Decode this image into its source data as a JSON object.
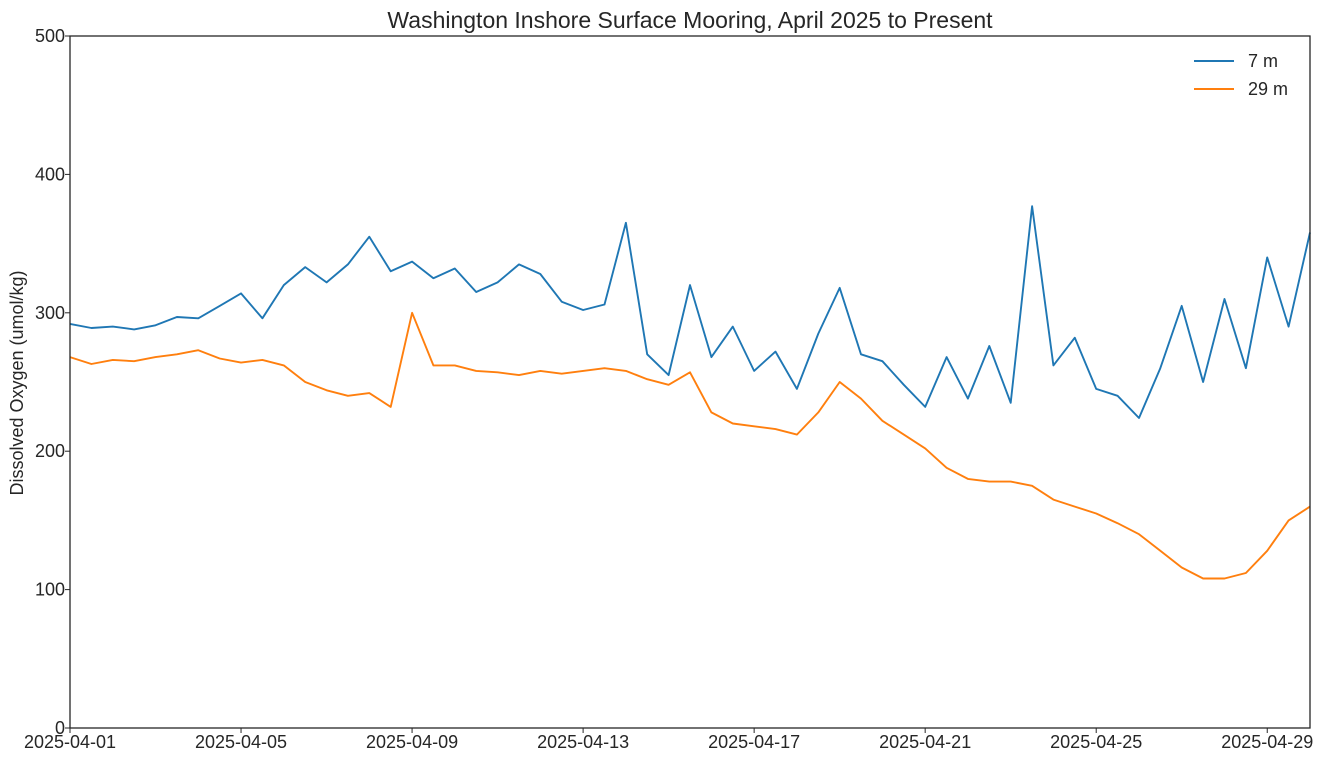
{
  "chart_data": {
    "type": "line",
    "title": "Washington Inshore Surface Mooring, April 2025 to Present",
    "xlabel": "",
    "ylabel": "Dissolved Oxygen (umol/kg)",
    "ylim": [
      0,
      500
    ],
    "xlim": [
      "2025-04-01",
      "2025-04-30"
    ],
    "yticks": [
      0,
      100,
      200,
      300,
      400,
      500
    ],
    "xticks": [
      "2025-04-01",
      "2025-04-05",
      "2025-04-09",
      "2025-04-13",
      "2025-04-17",
      "2025-04-21",
      "2025-04-25",
      "2025-04-29"
    ],
    "grid": false,
    "legend": "top-right",
    "x": [
      "2025-04-01 00:00",
      "2025-04-01 12:00",
      "2025-04-02 00:00",
      "2025-04-02 12:00",
      "2025-04-03 00:00",
      "2025-04-03 12:00",
      "2025-04-04 00:00",
      "2025-04-04 12:00",
      "2025-04-05 00:00",
      "2025-04-05 12:00",
      "2025-04-06 00:00",
      "2025-04-06 12:00",
      "2025-04-07 00:00",
      "2025-04-07 12:00",
      "2025-04-08 00:00",
      "2025-04-08 12:00",
      "2025-04-09 00:00",
      "2025-04-09 12:00",
      "2025-04-10 00:00",
      "2025-04-10 12:00",
      "2025-04-11 00:00",
      "2025-04-11 12:00",
      "2025-04-12 00:00",
      "2025-04-12 12:00",
      "2025-04-13 00:00",
      "2025-04-13 12:00",
      "2025-04-14 00:00",
      "2025-04-14 12:00",
      "2025-04-15 00:00",
      "2025-04-15 12:00",
      "2025-04-16 00:00",
      "2025-04-16 12:00",
      "2025-04-17 00:00",
      "2025-04-17 12:00",
      "2025-04-18 00:00",
      "2025-04-18 12:00",
      "2025-04-19 00:00",
      "2025-04-19 12:00",
      "2025-04-20 00:00",
      "2025-04-20 12:00",
      "2025-04-21 00:00",
      "2025-04-21 12:00",
      "2025-04-22 00:00",
      "2025-04-22 12:00",
      "2025-04-23 00:00",
      "2025-04-23 12:00",
      "2025-04-24 00:00",
      "2025-04-24 12:00",
      "2025-04-25 00:00",
      "2025-04-25 12:00",
      "2025-04-26 00:00",
      "2025-04-26 12:00",
      "2025-04-27 00:00",
      "2025-04-27 12:00",
      "2025-04-28 00:00",
      "2025-04-28 12:00",
      "2025-04-29 00:00",
      "2025-04-29 12:00",
      "2025-04-30 00:00"
    ],
    "series": [
      {
        "name": "7 m",
        "color": "#1f77b4",
        "values": [
          292,
          289,
          290,
          288,
          291,
          297,
          296,
          305,
          314,
          296,
          320,
          333,
          322,
          335,
          355,
          330,
          337,
          325,
          332,
          315,
          322,
          335,
          328,
          308,
          302,
          306,
          365,
          270,
          255,
          320,
          268,
          290,
          258,
          272,
          245,
          285,
          318,
          270,
          265,
          248,
          232,
          268,
          238,
          276,
          235,
          377,
          262,
          282,
          245,
          240,
          224,
          260,
          305,
          250,
          310,
          260,
          340,
          290,
          358
        ]
      },
      {
        "name": "29 m",
        "color": "#ff7f0e",
        "values": [
          268,
          263,
          266,
          265,
          268,
          270,
          273,
          267,
          264,
          266,
          262,
          250,
          244,
          240,
          242,
          232,
          300,
          262,
          262,
          258,
          257,
          255,
          258,
          256,
          258,
          260,
          258,
          252,
          248,
          257,
          228,
          220,
          218,
          216,
          212,
          228,
          250,
          238,
          222,
          212,
          202,
          188,
          180,
          178,
          178,
          175,
          165,
          160,
          155,
          148,
          140,
          128,
          116,
          108,
          108,
          112,
          128,
          150,
          160
        ]
      }
    ]
  }
}
